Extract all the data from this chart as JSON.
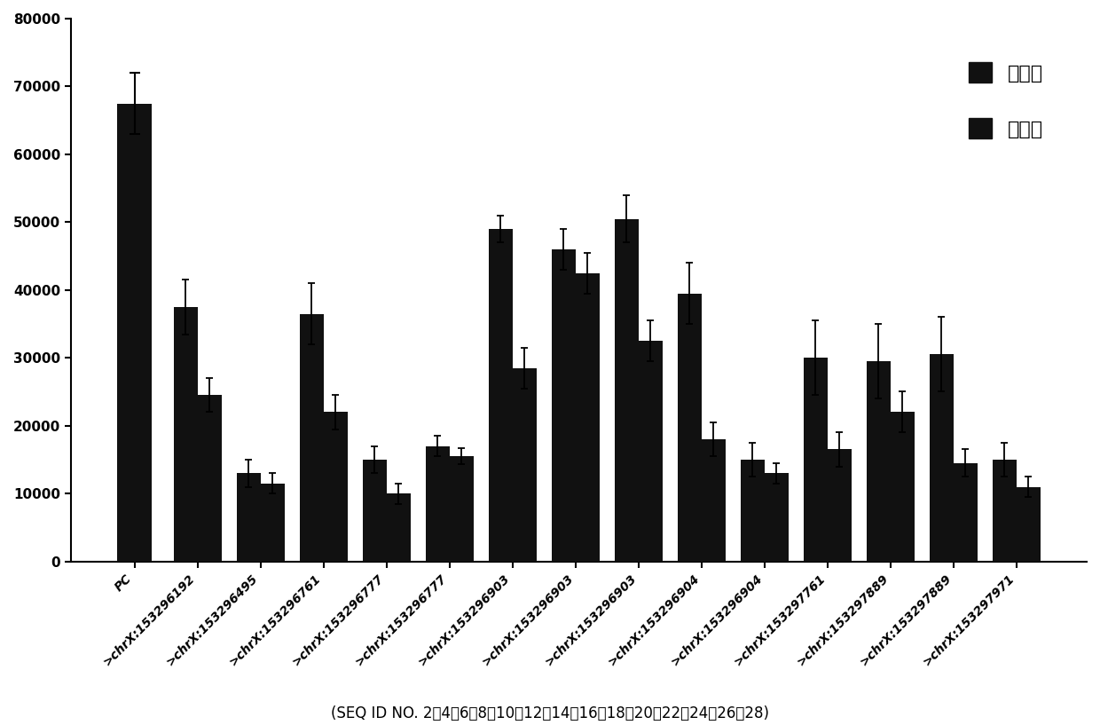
{
  "categories": [
    "PC",
    ">chrX:153296192",
    ">chrX:153296495",
    ">chrX:153296761",
    ">chrX:153296777",
    ">chrX:153296777",
    ">chrX:153296903",
    ">chrX:153296903",
    ">chrX:153296903",
    ">chrX:153296904",
    ">chrX:153296904",
    ">chrX:153297761",
    ">chrX:153297889",
    ">chrX:153297889",
    ">chrX:153297971"
  ],
  "mutant_values": [
    67500,
    37500,
    13000,
    36500,
    15000,
    17000,
    49000,
    46000,
    50500,
    39500,
    15000,
    30000,
    29500,
    30500,
    15000
  ],
  "wildtype_values": [
    0,
    24500,
    11500,
    22000,
    10000,
    15500,
    28500,
    42500,
    32500,
    18000,
    13000,
    16500,
    22000,
    14500,
    11000
  ],
  "mutant_errors": [
    4500,
    4000,
    2000,
    4500,
    2000,
    1500,
    2000,
    3000,
    3500,
    4500,
    2500,
    5500,
    5500,
    5500,
    2500
  ],
  "wildtype_errors": [
    0,
    2500,
    1500,
    2500,
    1500,
    1200,
    3000,
    3000,
    3000,
    2500,
    1500,
    2500,
    3000,
    2000,
    1500
  ],
  "bar_color": "#111111",
  "background_color": "#ffffff",
  "legend_mutant": "突变型",
  "legend_wildtype": "野生型",
  "ylim": [
    0,
    80000
  ],
  "yticks": [
    0,
    10000,
    20000,
    30000,
    40000,
    50000,
    60000,
    70000,
    80000
  ],
  "xlabel_bottom": "(SEQ ID NO. 2、4、6、8、10、12、14、16、18、20、22、24、26、28)",
  "bar_width": 0.38,
  "single_bar_width": 0.55,
  "fontsize_tick": 11,
  "fontsize_legend": 16,
  "fontsize_xlabel": 12,
  "fontsize_xtick": 10
}
